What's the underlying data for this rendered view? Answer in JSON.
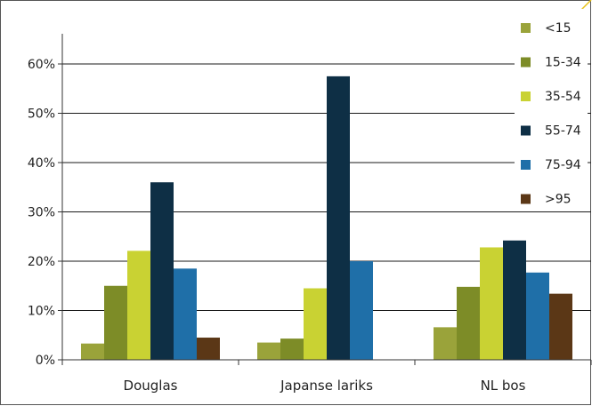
{
  "chart_data": {
    "type": "bar",
    "title": "",
    "xlabel": "",
    "ylabel": "",
    "categories": [
      "Douglas",
      "Japanse lariks",
      "NL bos"
    ],
    "ylim": [
      0,
      0.6
    ],
    "yticks": [
      {
        "value": 0.0,
        "label": "0%"
      },
      {
        "value": 0.1,
        "label": "10%"
      },
      {
        "value": 0.2,
        "label": "20%"
      },
      {
        "value": 0.3,
        "label": "30%"
      },
      {
        "value": 0.4,
        "label": "40%"
      },
      {
        "value": 0.5,
        "label": "50%"
      },
      {
        "value": 0.6,
        "label": "60%"
      }
    ],
    "grid": true,
    "legend_position": "right",
    "series": [
      {
        "name": "<15",
        "color": "#9aa33a",
        "values": [
          0.033,
          0.035,
          0.066
        ]
      },
      {
        "name": "15-34",
        "color": "#7d8c27",
        "values": [
          0.15,
          0.043,
          0.148
        ]
      },
      {
        "name": "35-54",
        "color": "#c9d233",
        "values": [
          0.221,
          0.145,
          0.228
        ]
      },
      {
        "name": "55-74",
        "color": "#0e2f45",
        "values": [
          0.36,
          0.575,
          0.242
        ]
      },
      {
        "name": "75-94",
        "color": "#1f6fa8",
        "values": [
          0.185,
          0.2,
          0.177
        ]
      },
      {
        "name": ">95",
        "color": "#5b3716",
        "values": [
          0.045,
          0.0,
          0.134
        ]
      }
    ]
  }
}
